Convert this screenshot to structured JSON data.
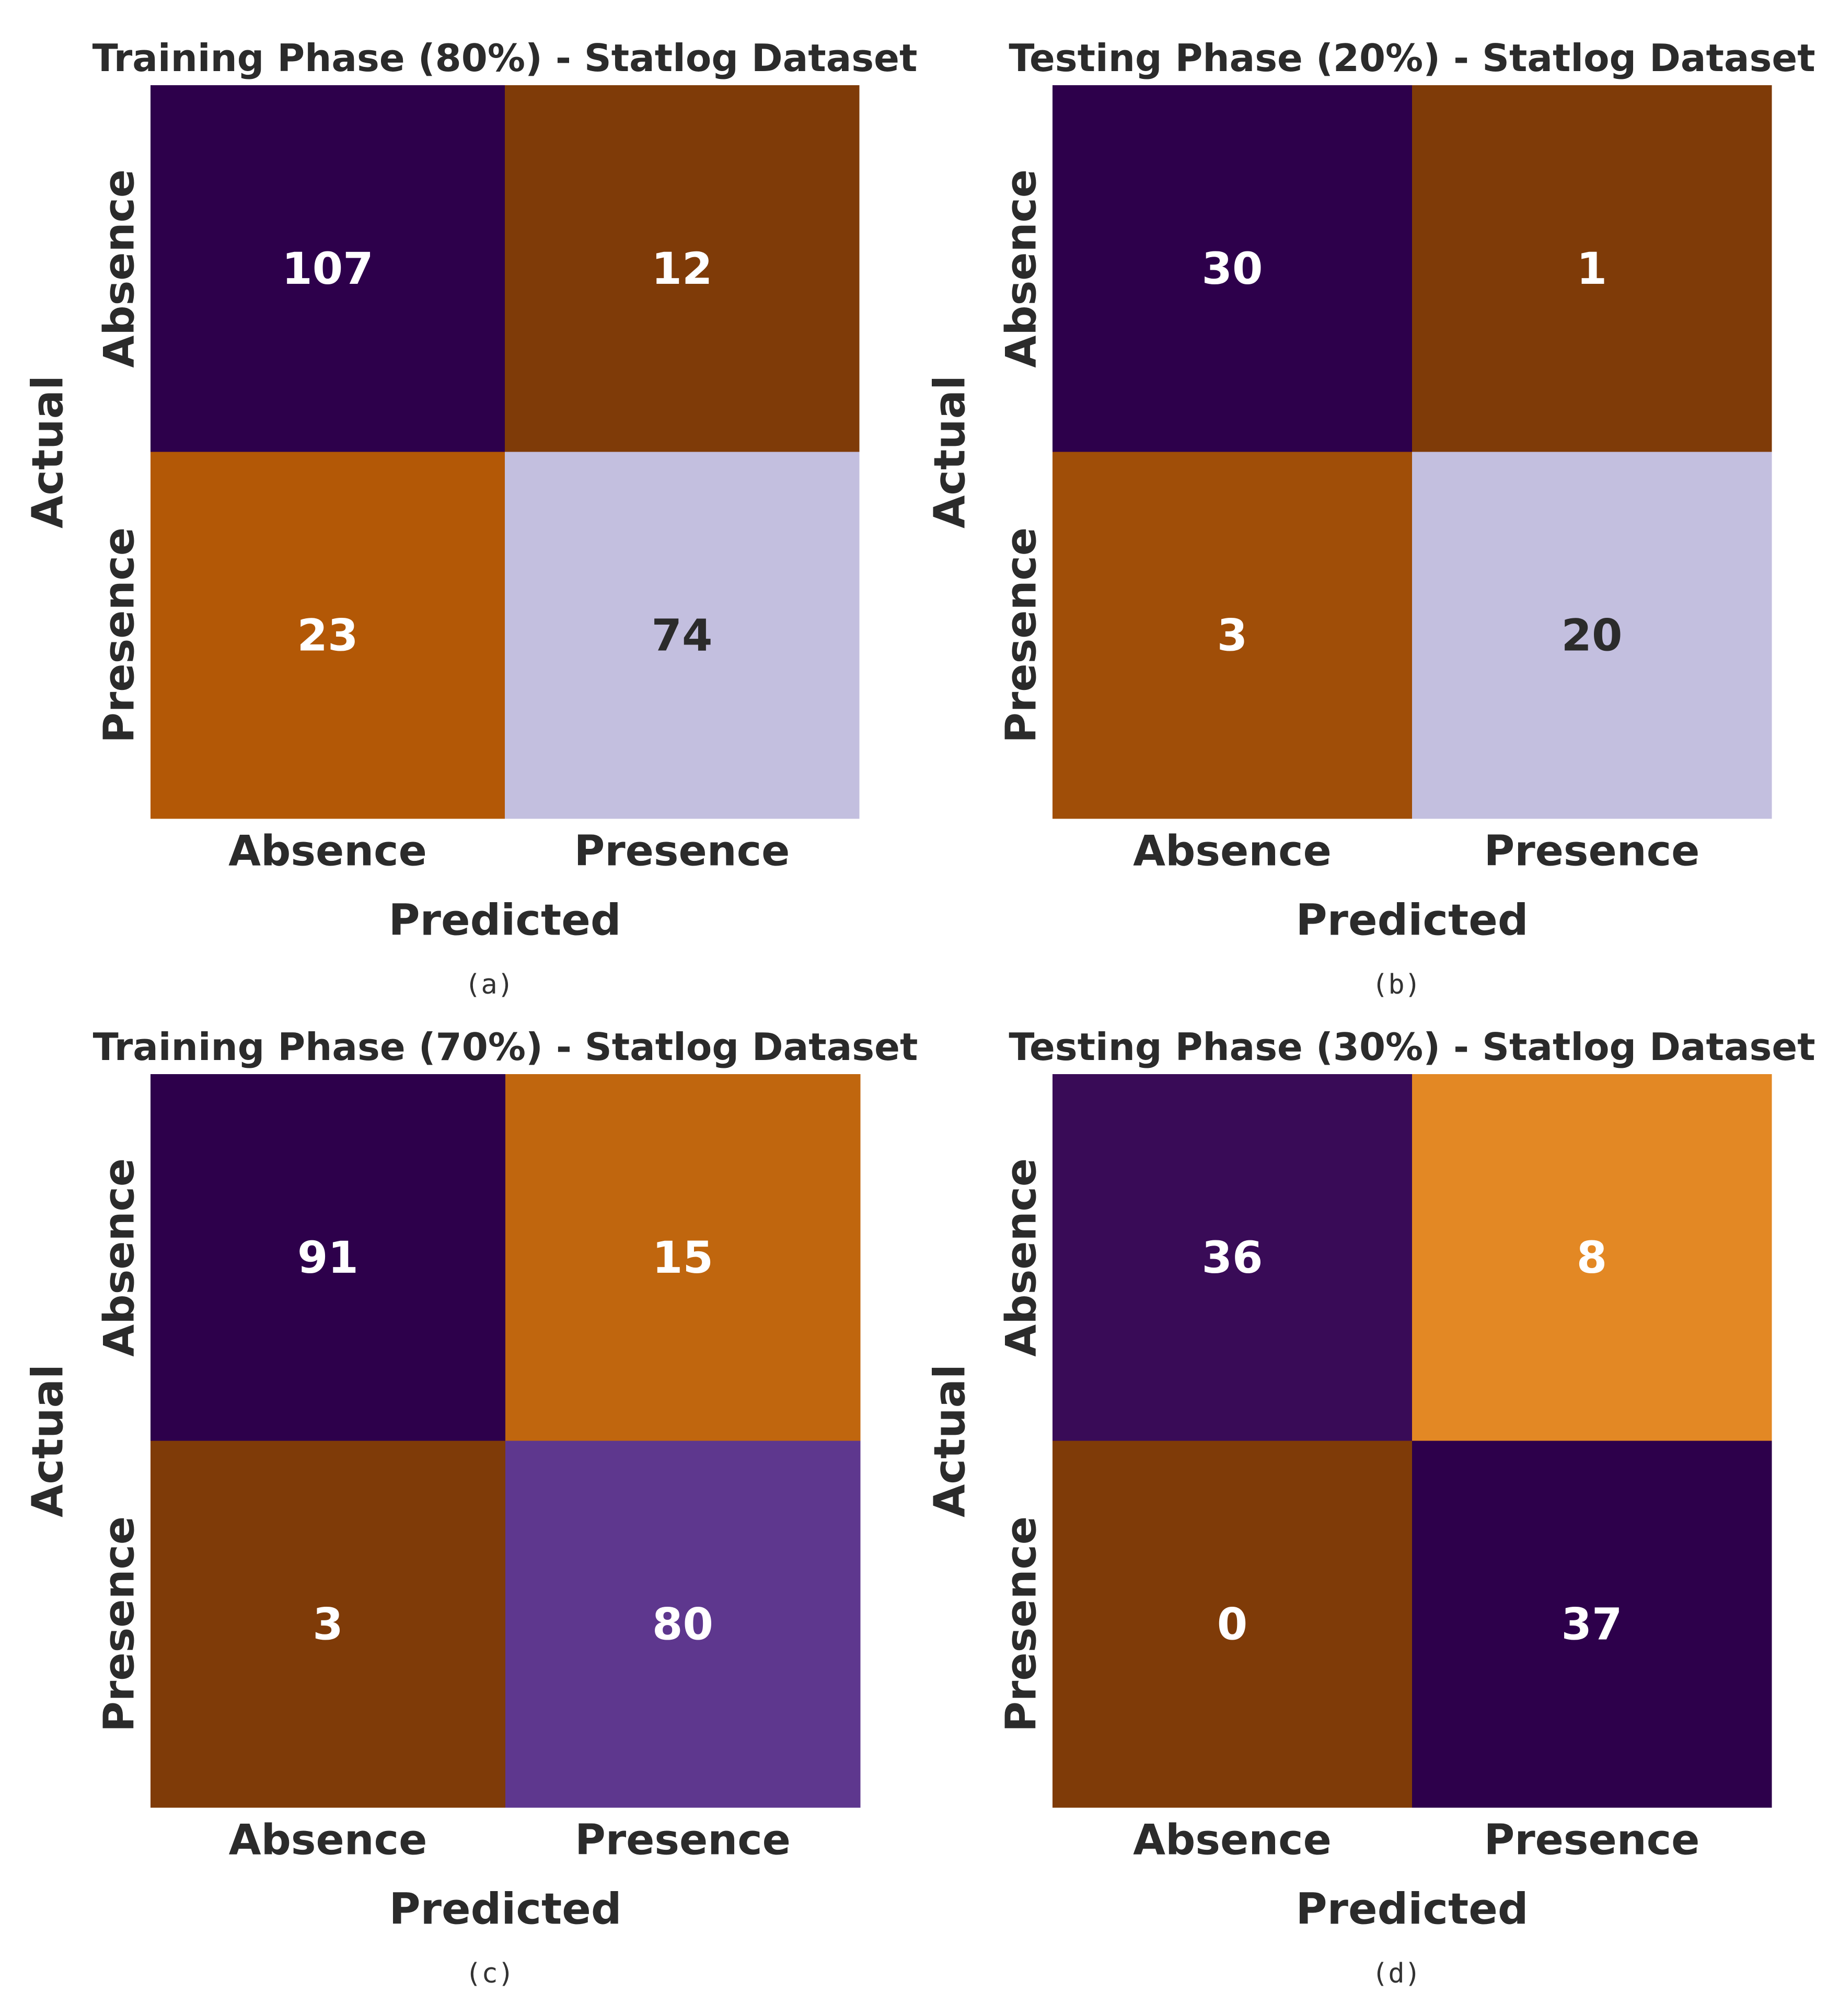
{
  "chart_data": [
    {
      "type": "heatmap",
      "title": "Training Phase (80%) - Statlog Dataset",
      "xlabel": "Predicted",
      "ylabel": "Actual",
      "x_categories": [
        "Absence",
        "Presence"
      ],
      "y_categories": [
        "Absence",
        "Presence"
      ],
      "values": [
        [
          107,
          12
        ],
        [
          23,
          74
        ]
      ],
      "cell_colors": [
        [
          "#2d004b",
          "#7f3b08"
        ],
        [
          "#b35806",
          "#c3bfdf"
        ]
      ],
      "text_colors": [
        [
          "#ffffff",
          "#ffffff"
        ],
        [
          "#ffffff",
          "#2b2b2b"
        ]
      ],
      "caption": "(a)"
    },
    {
      "type": "heatmap",
      "title": "Testing Phase (20%) - Statlog Dataset",
      "xlabel": "Predicted",
      "ylabel": "Actual",
      "x_categories": [
        "Absence",
        "Presence"
      ],
      "y_categories": [
        "Absence",
        "Presence"
      ],
      "values": [
        [
          30,
          1
        ],
        [
          3,
          20
        ]
      ],
      "cell_colors": [
        [
          "#2d004b",
          "#7f3b08"
        ],
        [
          "#a04e08",
          "#c3bfdf"
        ]
      ],
      "text_colors": [
        [
          "#ffffff",
          "#ffffff"
        ],
        [
          "#ffffff",
          "#2b2b2b"
        ]
      ],
      "caption": "(b)"
    },
    {
      "type": "heatmap",
      "title": "Training Phase (70%) - Statlog Dataset",
      "xlabel": "Predicted",
      "ylabel": "Actual",
      "x_categories": [
        "Absence",
        "Presence"
      ],
      "y_categories": [
        "Absence",
        "Presence"
      ],
      "values": [
        [
          91,
          15
        ],
        [
          3,
          80
        ]
      ],
      "cell_colors": [
        [
          "#2d004b",
          "#c0660e"
        ],
        [
          "#7f3b08",
          "#5e378e"
        ]
      ],
      "text_colors": [
        [
          "#ffffff",
          "#ffffff"
        ],
        [
          "#ffffff",
          "#ffffff"
        ]
      ],
      "caption": "(c)"
    },
    {
      "type": "heatmap",
      "title": "Testing Phase (30%) - Statlog Dataset",
      "xlabel": "Predicted",
      "ylabel": "Actual",
      "x_categories": [
        "Absence",
        "Presence"
      ],
      "y_categories": [
        "Absence",
        "Presence"
      ],
      "values": [
        [
          36,
          8
        ],
        [
          0,
          37
        ]
      ],
      "cell_colors": [
        [
          "#390b57",
          "#e38824"
        ],
        [
          "#7f3b08",
          "#2d004b"
        ]
      ],
      "text_colors": [
        [
          "#ffffff",
          "#ffffff"
        ],
        [
          "#ffffff",
          "#ffffff"
        ]
      ],
      "caption": "(d)"
    }
  ]
}
